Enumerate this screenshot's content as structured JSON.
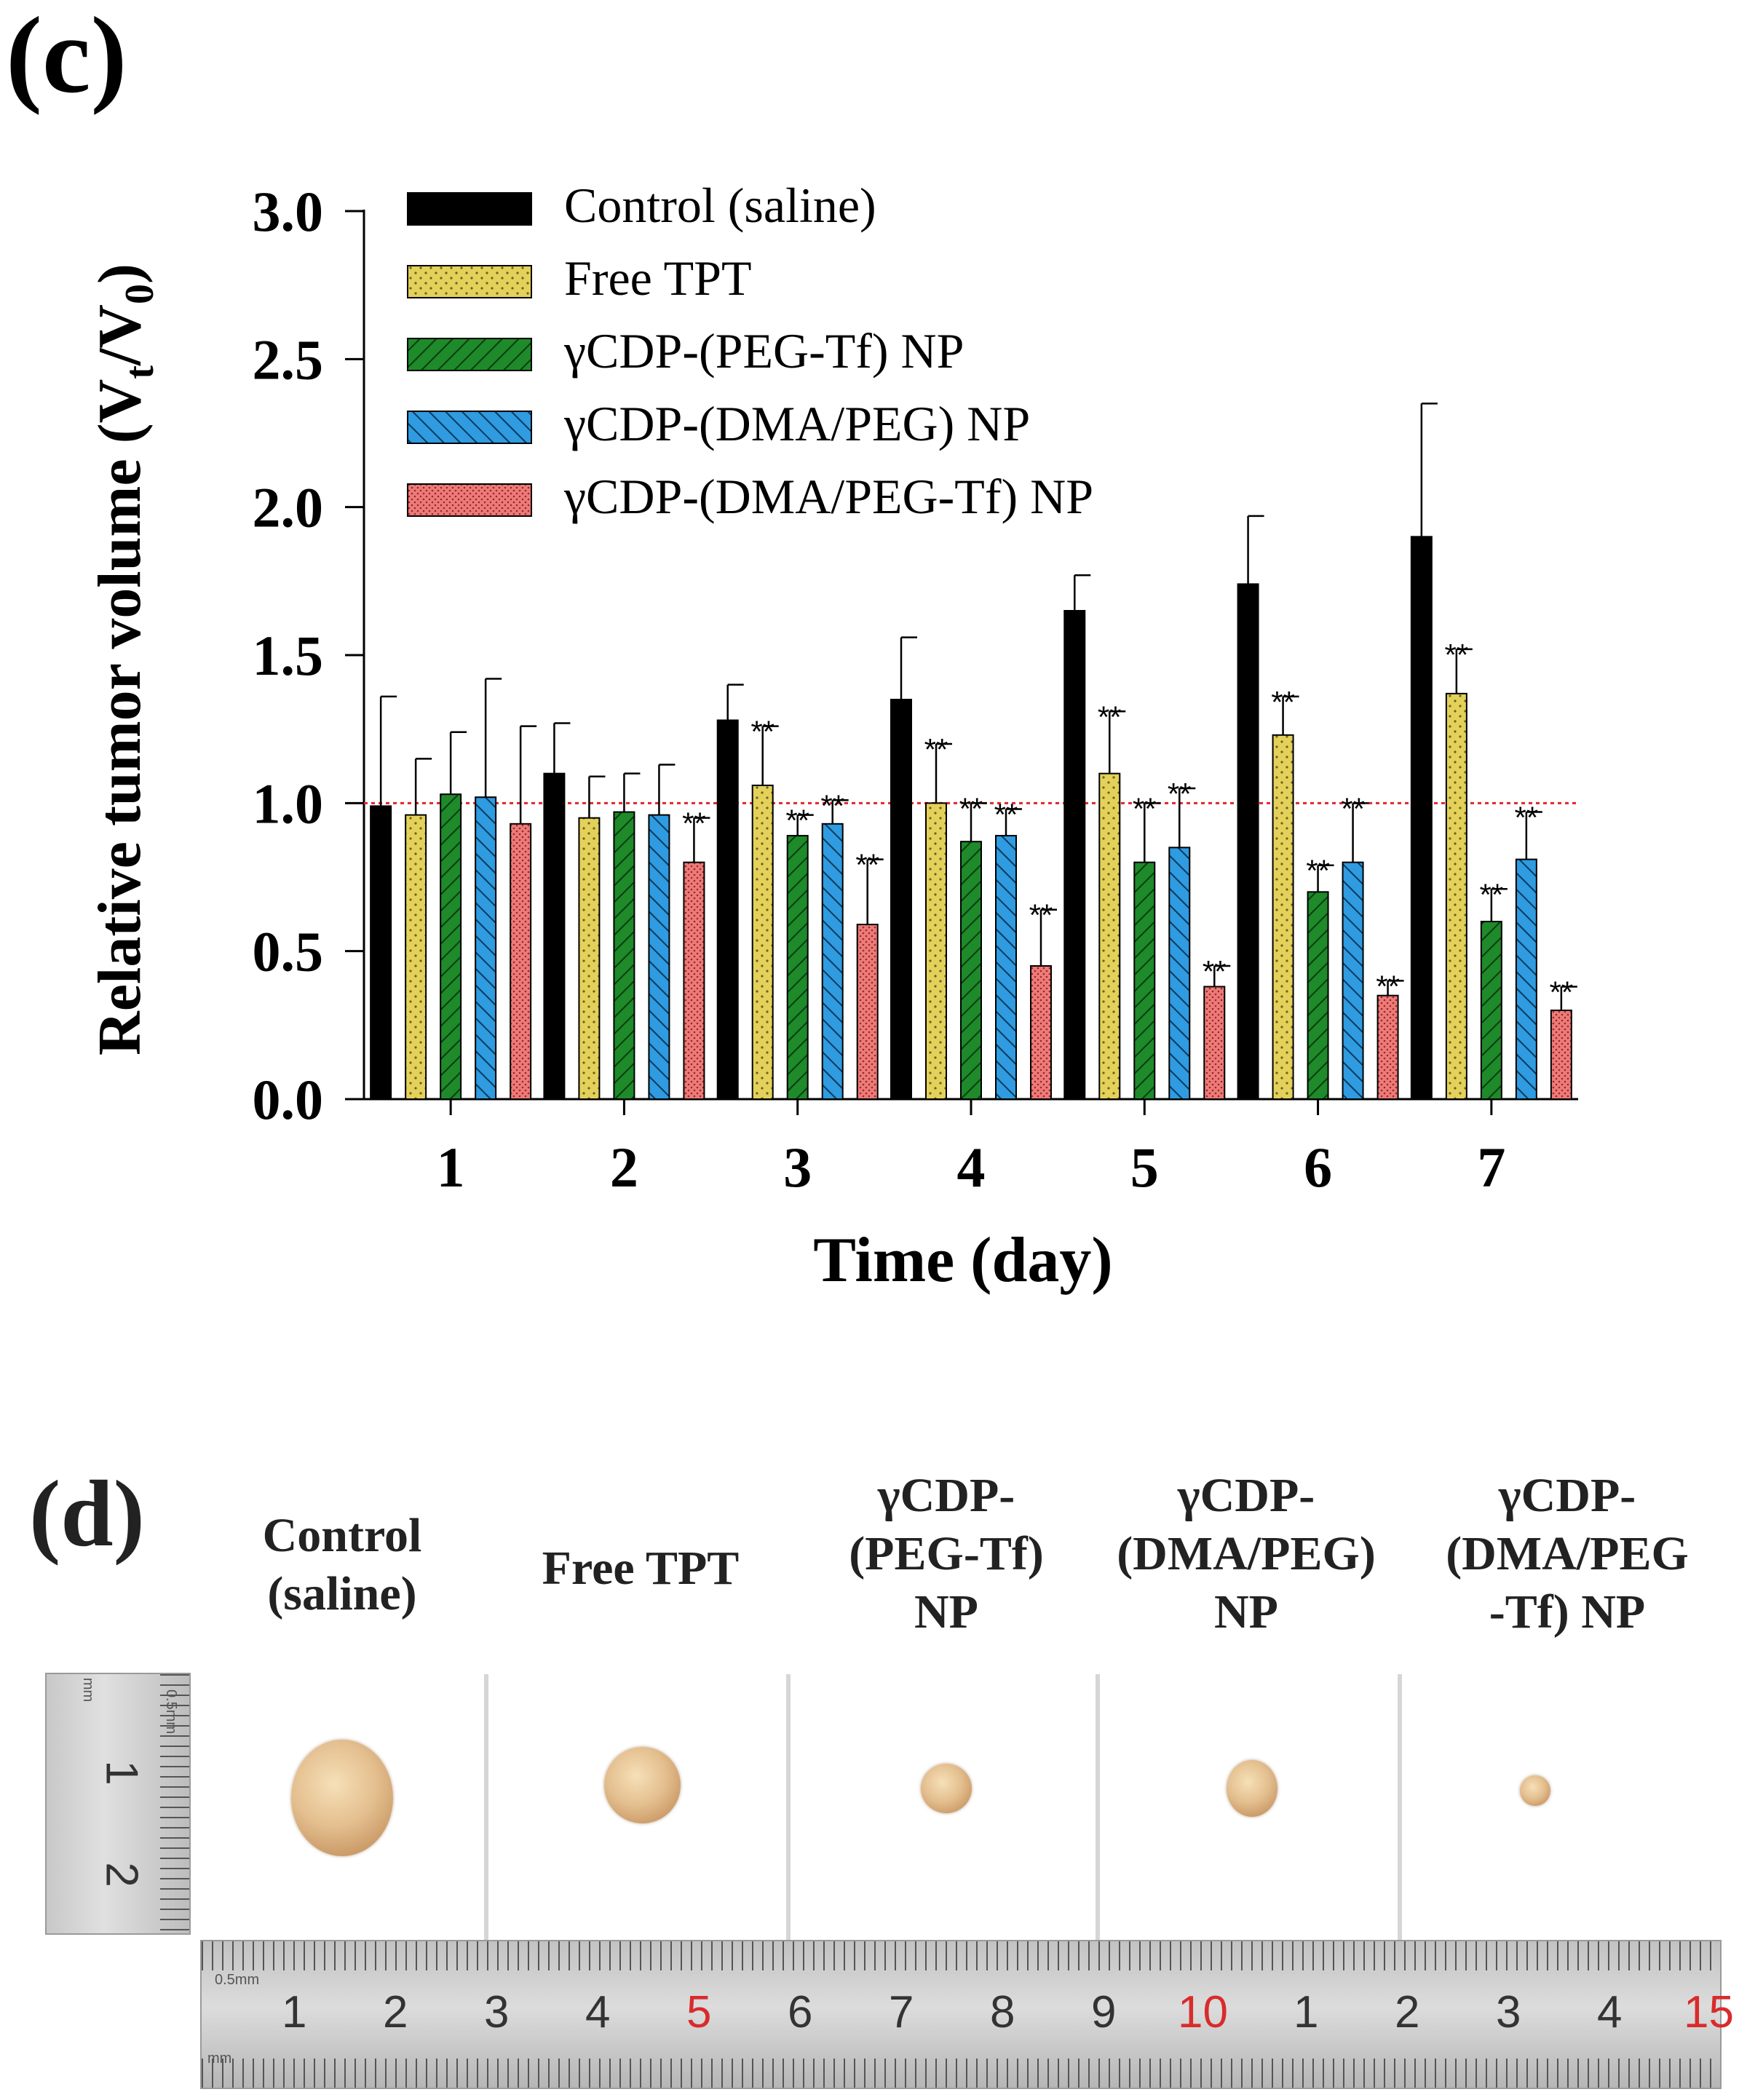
{
  "panels": {
    "c_label": "(c)",
    "d_label": "(d)"
  },
  "chart_data": {
    "type": "bar",
    "xlabel": "Time (day)",
    "ylabel": "Relative tumor volume (V",
    "ylabel_sub_t": "t",
    "ylabel_mid": "/V",
    "ylabel_sub_0": "0",
    "ylabel_end": ")",
    "ylim": [
      0,
      3.0
    ],
    "yticks": [
      "0.0",
      "0.5",
      "1.0",
      "1.5",
      "2.0",
      "2.5",
      "3.0"
    ],
    "categories": [
      "1",
      "2",
      "3",
      "4",
      "5",
      "6",
      "7"
    ],
    "reference_line": 1.0,
    "significance_label": "**",
    "series": [
      {
        "name": "Control (saline)",
        "color": "#000000",
        "pattern": "solid",
        "values": [
          0.99,
          1.1,
          1.28,
          1.35,
          1.65,
          1.74,
          1.9
        ],
        "errors": [
          0.37,
          0.17,
          0.12,
          0.21,
          0.12,
          0.23,
          0.45
        ],
        "sig": [
          false,
          false,
          false,
          false,
          false,
          false,
          false
        ]
      },
      {
        "name": "Free TPT",
        "color": "#e3d15a",
        "pattern": "dots",
        "values": [
          0.96,
          0.95,
          1.06,
          1.0,
          1.1,
          1.23,
          1.37
        ],
        "errors": [
          0.19,
          0.14,
          0.2,
          0.2,
          0.21,
          0.13,
          0.15
        ],
        "sig": [
          false,
          false,
          true,
          true,
          true,
          true,
          true
        ]
      },
      {
        "name": "γCDP-(PEG-Tf) NP",
        "color": "#1e8a2a",
        "pattern": "hatch-right",
        "values": [
          1.03,
          0.97,
          0.89,
          0.87,
          0.8,
          0.7,
          0.6
        ],
        "errors": [
          0.21,
          0.13,
          0.07,
          0.13,
          0.2,
          0.09,
          0.11
        ],
        "sig": [
          false,
          false,
          true,
          true,
          true,
          true,
          true
        ]
      },
      {
        "name": "γCDP-(DMA/PEG) NP",
        "color": "#2f9be0",
        "pattern": "hatch-left",
        "values": [
          1.02,
          0.96,
          0.93,
          0.89,
          0.85,
          0.8,
          0.81
        ],
        "errors": [
          0.4,
          0.17,
          0.08,
          0.09,
          0.2,
          0.2,
          0.16
        ],
        "sig": [
          false,
          false,
          true,
          true,
          true,
          true,
          true
        ]
      },
      {
        "name": "γCDP-(DMA/PEG-Tf) NP",
        "color": "#f07a78",
        "pattern": "fine-dots",
        "values": [
          0.93,
          0.8,
          0.59,
          0.45,
          0.38,
          0.35,
          0.3
        ],
        "errors": [
          0.33,
          0.15,
          0.22,
          0.19,
          0.07,
          0.05,
          0.08
        ],
        "sig": [
          false,
          true,
          true,
          true,
          true,
          true,
          true
        ]
      }
    ]
  },
  "tumor_photos": {
    "groups": [
      {
        "lines": [
          "Control",
          "(saline)"
        ]
      },
      {
        "lines": [
          "Free TPT"
        ]
      },
      {
        "lines": [
          "γCDP-",
          "(PEG-Tf)",
          "NP"
        ]
      },
      {
        "lines": [
          "γCDP-",
          "(DMA/PEG)",
          "NP"
        ]
      },
      {
        "lines": [
          "γCDP-",
          "(DMA/PEG",
          "-Tf) NP"
        ]
      }
    ],
    "ruler_vertical": [
      "1",
      "2"
    ],
    "ruler_vertical_unit": "mm",
    "ruler_vertical_mark": "0.5mm",
    "ruler_horizontal": [
      "1",
      "2",
      "3",
      "4",
      "5",
      "6",
      "7",
      "8",
      "9",
      "10",
      "1",
      "2",
      "3",
      "4",
      "15"
    ],
    "ruler_horizontal_mark": "0.5mm",
    "ruler_horizontal_unit": "mm",
    "ruler_red_color": "#d92b2b"
  }
}
